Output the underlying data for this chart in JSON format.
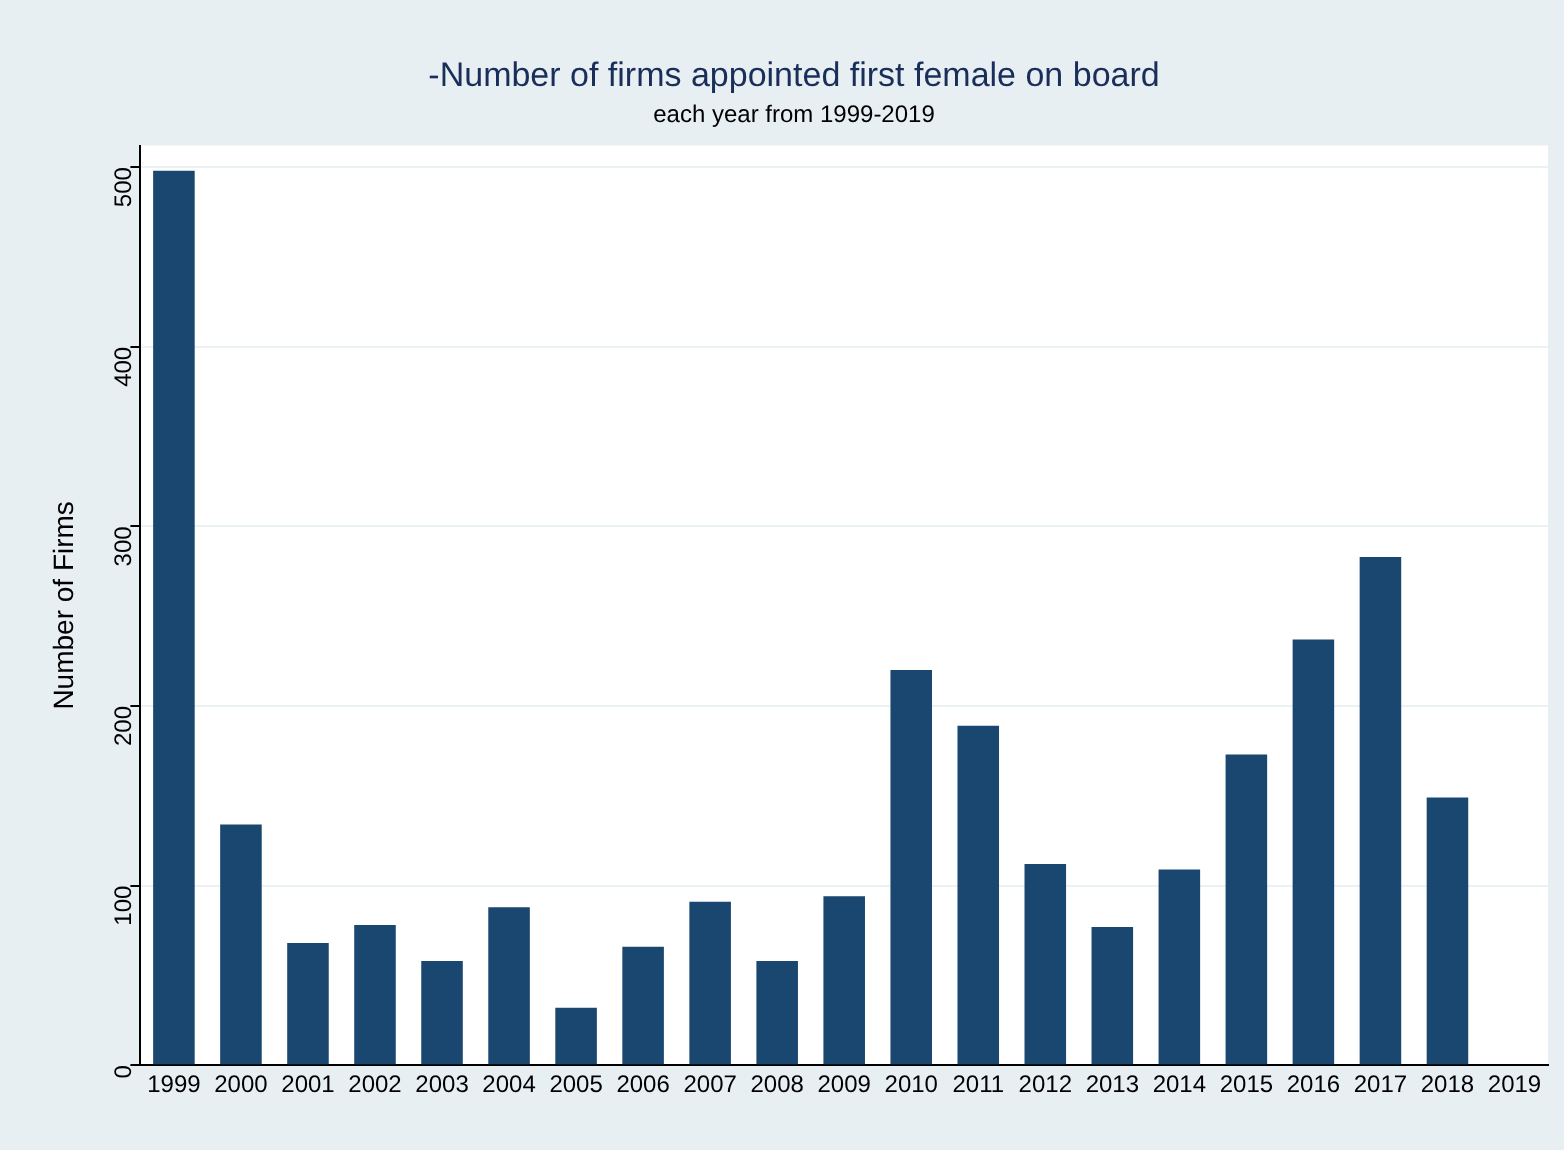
{
  "chart_data": {
    "type": "bar",
    "title": "-Number of firms appointed first female on board",
    "subtitle": "each year from 1999-2019",
    "ylabel": "Number of Firms",
    "categories": [
      "1999",
      "2000",
      "2001",
      "2002",
      "2003",
      "2004",
      "2005",
      "2006",
      "2007",
      "2008",
      "2009",
      "2010",
      "2011",
      "2012",
      "2013",
      "2014",
      "2015",
      "2016",
      "2017",
      "2018",
      "2019"
    ],
    "values": [
      498,
      134,
      68,
      78,
      58,
      88,
      32,
      66,
      91,
      58,
      94,
      220,
      189,
      112,
      77,
      109,
      173,
      237,
      283,
      149,
      0
    ],
    "color": "#1a476f",
    "ylim": [
      0,
      512
    ],
    "yticks": [
      0,
      100,
      200,
      300,
      400,
      500
    ],
    "grid": "y",
    "legend": false
  }
}
